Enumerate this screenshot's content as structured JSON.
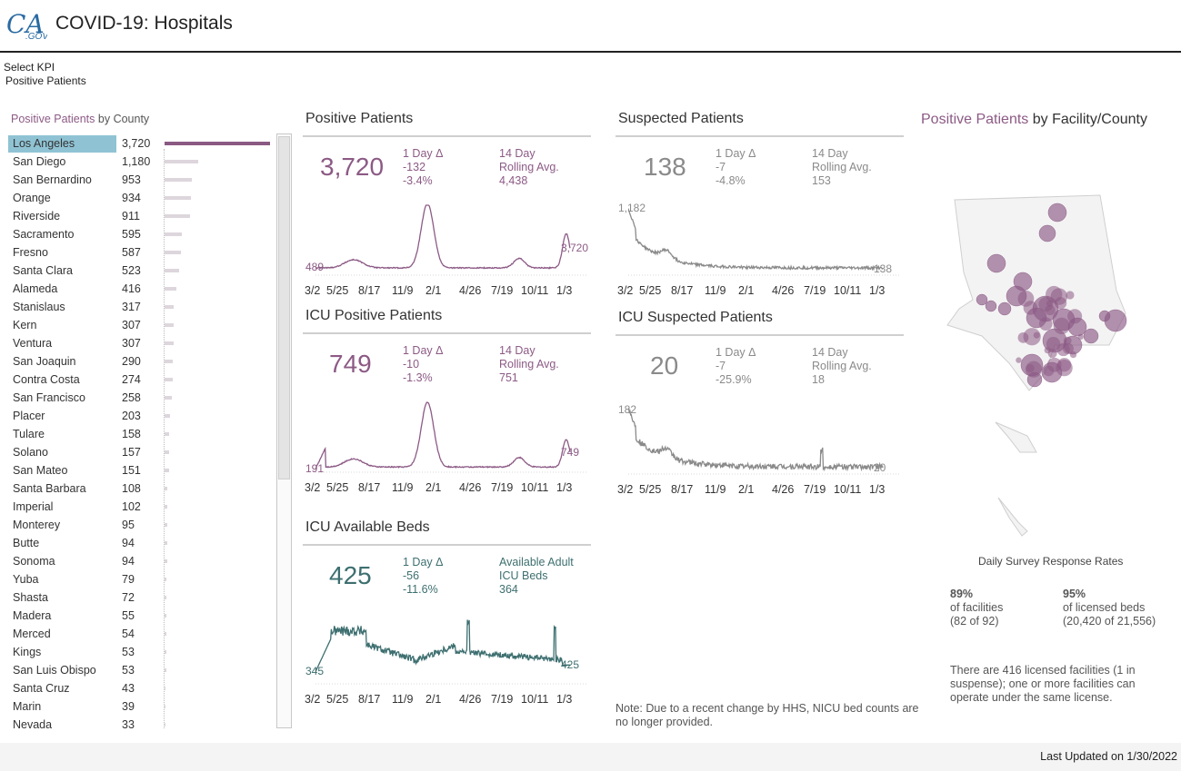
{
  "header": {
    "logo_text": "CA.GOV",
    "title": "COVID-19: Hospitals"
  },
  "kpi": {
    "label": "Select KPI",
    "value": "Positive Patients"
  },
  "county_panel": {
    "title_kpi": "Positive Patients",
    "title_rest": " by County",
    "selected": "Los Angeles",
    "max_value": 3720,
    "rows": [
      {
        "name": "Los Angeles",
        "value": "3,720",
        "n": 3720
      },
      {
        "name": "San Diego",
        "value": "1,180",
        "n": 1180
      },
      {
        "name": "San Bernardino",
        "value": "953",
        "n": 953
      },
      {
        "name": "Orange",
        "value": "934",
        "n": 934
      },
      {
        "name": "Riverside",
        "value": "911",
        "n": 911
      },
      {
        "name": "Sacramento",
        "value": "595",
        "n": 595
      },
      {
        "name": "Fresno",
        "value": "587",
        "n": 587
      },
      {
        "name": "Santa Clara",
        "value": "523",
        "n": 523
      },
      {
        "name": "Alameda",
        "value": "416",
        "n": 416
      },
      {
        "name": "Stanislaus",
        "value": "317",
        "n": 317
      },
      {
        "name": "Kern",
        "value": "307",
        "n": 307
      },
      {
        "name": "Ventura",
        "value": "307",
        "n": 307
      },
      {
        "name": "San Joaquin",
        "value": "290",
        "n": 290
      },
      {
        "name": "Contra Costa",
        "value": "274",
        "n": 274
      },
      {
        "name": "San Francisco",
        "value": "258",
        "n": 258
      },
      {
        "name": "Placer",
        "value": "203",
        "n": 203
      },
      {
        "name": "Tulare",
        "value": "158",
        "n": 158
      },
      {
        "name": "Solano",
        "value": "157",
        "n": 157
      },
      {
        "name": "San Mateo",
        "value": "151",
        "n": 151
      },
      {
        "name": "Santa Barbara",
        "value": "108",
        "n": 108
      },
      {
        "name": "Imperial",
        "value": "102",
        "n": 102
      },
      {
        "name": "Monterey",
        "value": "95",
        "n": 95
      },
      {
        "name": "Butte",
        "value": "94",
        "n": 94
      },
      {
        "name": "Sonoma",
        "value": "94",
        "n": 94
      },
      {
        "name": "Yuba",
        "value": "79",
        "n": 79
      },
      {
        "name": "Shasta",
        "value": "72",
        "n": 72
      },
      {
        "name": "Madera",
        "value": "55",
        "n": 55
      },
      {
        "name": "Merced",
        "value": "54",
        "n": 54
      },
      {
        "name": "Kings",
        "value": "53",
        "n": 53
      },
      {
        "name": "San Luis Obispo",
        "value": "53",
        "n": 53
      },
      {
        "name": "Santa Cruz",
        "value": "43",
        "n": 43
      },
      {
        "name": "Marin",
        "value": "39",
        "n": 39
      },
      {
        "name": "Nevada",
        "value": "33",
        "n": 33
      }
    ]
  },
  "x_ticks": [
    "3/2",
    "5/25",
    "8/17",
    "11/9",
    "2/1",
    "4/26",
    "7/19",
    "10/11",
    "1/3"
  ],
  "colors": {
    "pink": "#8c5a85",
    "gray": "#8a8a8a",
    "teal": "#3e6f70"
  },
  "kpis": {
    "positive": {
      "title": "Positive Patients",
      "value": "3,720",
      "delta_label": "1 Day Δ",
      "delta_abs": "-132",
      "delta_pct": "-3.4%",
      "avg_label": "14 Day\nRolling Avg.",
      "avg_value": "4,438",
      "ann_start": "489",
      "ann_end": "3,720"
    },
    "suspected": {
      "title": "Suspected Patients",
      "value": "138",
      "delta_label": "1 Day Δ",
      "delta_abs": "-7",
      "delta_pct": "-4.8%",
      "avg_label": "14 Day\nRolling Avg.",
      "avg_value": "153",
      "ann_start": "1,182",
      "ann_end": "138"
    },
    "icu_positive": {
      "title": "ICU Positive Patients",
      "value": "749",
      "delta_label": "1 Day Δ",
      "delta_abs": "-10",
      "delta_pct": "-1.3%",
      "avg_label": "14 Day\nRolling Avg.",
      "avg_value": "751",
      "ann_start": "191",
      "ann_end": "749"
    },
    "icu_suspected": {
      "title": "ICU Suspected Patients",
      "value": "20",
      "delta_label": "1 Day Δ",
      "delta_abs": "-7",
      "delta_pct": "-25.9%",
      "avg_label": "14 Day\nRolling Avg.",
      "avg_value": "18",
      "ann_start": "182",
      "ann_end": "20"
    },
    "icu_beds": {
      "title": "ICU Available Beds",
      "value": "425",
      "delta_label": "1 Day Δ",
      "delta_abs": "-56",
      "delta_pct": "-11.6%",
      "avg_label": "Available Adult\nICU Beds",
      "avg_value": "364",
      "ann_start": "345",
      "ann_end": "425"
    }
  },
  "note": "Note: Due to a recent change by HHS, NICU bed counts are no longer provided.",
  "map": {
    "title_kpi": "Positive Patients",
    "title_rest": " by Facility/County"
  },
  "survey": {
    "title": "Daily Survey Response Rates",
    "facilities_pct": "89%",
    "facilities_label": "of facilities",
    "facilities_count": "(82 of 92)",
    "beds_pct": "95%",
    "beds_label": "of licensed beds",
    "beds_count": "(20,420 of 21,556)"
  },
  "facilities_note": "There are 416 licensed facilities (1 in suspense); one or more facilities can operate under the same license.",
  "footer": {
    "updated": "Last Updated on 1/30/2022"
  }
}
